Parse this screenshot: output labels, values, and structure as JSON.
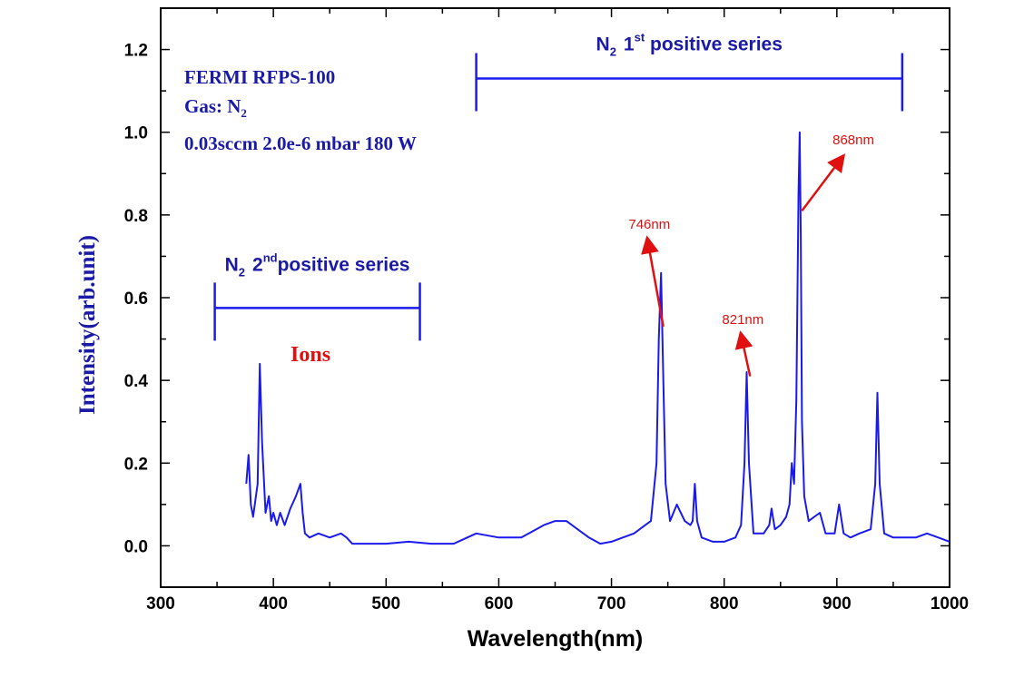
{
  "chart_data": {
    "type": "line",
    "xlabel": "Wavelength(nm)",
    "ylabel": "Intensity(arb.unit)",
    "xlim": [
      300,
      1000
    ],
    "ylim": [
      -0.1,
      1.3
    ],
    "x_ticks": [
      300,
      400,
      500,
      600,
      700,
      800,
      900,
      1000
    ],
    "x_tick_labels": [
      "300",
      "400",
      "500",
      "600",
      "700",
      "800",
      "900",
      "1000"
    ],
    "y_ticks": [
      0.0,
      0.2,
      0.4,
      0.6,
      0.8,
      1.0,
      1.2
    ],
    "y_tick_labels": [
      "0.0",
      "0.2",
      "0.4",
      "0.6",
      "0.8",
      "1.0",
      "1.2"
    ],
    "grid": false,
    "series_color": "#1a1aee",
    "annotation_color": "#e01010",
    "x": [
      376,
      378,
      380,
      382,
      386,
      388,
      390,
      393,
      396,
      398,
      400,
      403,
      406,
      410,
      415,
      420,
      424,
      426,
      428,
      432,
      440,
      450,
      460,
      465,
      470,
      480,
      500,
      520,
      540,
      560,
      580,
      600,
      620,
      640,
      650,
      660,
      670,
      680,
      690,
      700,
      710,
      720,
      730,
      735,
      740,
      742,
      744,
      746,
      748,
      752,
      758,
      765,
      770,
      772,
      774,
      776,
      780,
      790,
      800,
      810,
      815,
      818,
      820,
      822,
      826,
      835,
      840,
      842,
      845,
      850,
      855,
      858,
      860,
      862,
      864,
      866,
      867,
      868,
      869,
      871,
      875,
      880,
      885,
      890,
      898,
      902,
      906,
      912,
      920,
      930,
      934,
      936,
      938,
      942,
      950,
      960,
      970,
      980,
      990,
      1000
    ],
    "y": [
      0.15,
      0.22,
      0.1,
      0.07,
      0.15,
      0.44,
      0.25,
      0.08,
      0.12,
      0.06,
      0.08,
      0.05,
      0.08,
      0.05,
      0.09,
      0.12,
      0.15,
      0.08,
      0.03,
      0.02,
      0.03,
      0.02,
      0.03,
      0.02,
      0.005,
      0.005,
      0.005,
      0.01,
      0.005,
      0.005,
      0.03,
      0.02,
      0.02,
      0.05,
      0.06,
      0.06,
      0.04,
      0.02,
      0.005,
      0.01,
      0.02,
      0.03,
      0.05,
      0.06,
      0.2,
      0.5,
      0.66,
      0.4,
      0.15,
      0.06,
      0.1,
      0.06,
      0.05,
      0.06,
      0.15,
      0.06,
      0.02,
      0.01,
      0.01,
      0.02,
      0.05,
      0.2,
      0.42,
      0.2,
      0.03,
      0.03,
      0.05,
      0.09,
      0.04,
      0.05,
      0.07,
      0.1,
      0.2,
      0.15,
      0.35,
      0.85,
      1.0,
      0.75,
      0.3,
      0.12,
      0.06,
      0.07,
      0.08,
      0.03,
      0.03,
      0.1,
      0.03,
      0.02,
      0.03,
      0.04,
      0.15,
      0.37,
      0.15,
      0.03,
      0.02,
      0.02,
      0.02,
      0.03,
      0.02,
      0.01
    ],
    "info_lines": [
      "FERMI RFPS-100",
      "Gas: N",
      "0.03sccm 2.0e-6 mbar 180 W"
    ],
    "info_gas_subscript": "2",
    "series_1st": {
      "prefix": "N",
      "subscript": "2",
      "number": "1",
      "superscript": "st",
      "text": " positive series",
      "x_range": [
        580,
        958
      ],
      "y": 1.13
    },
    "series_2nd": {
      "prefix": "N",
      "subscript": "2",
      "number": "2",
      "superscript": "nd",
      "text": "positive series",
      "x_range": [
        348,
        530
      ],
      "y": 0.575
    },
    "ions_label": "Ions",
    "peak_annotations": [
      {
        "label": "746nm",
        "from": [
          746,
          0.53
        ],
        "to": [
          732,
          0.74
        ]
      },
      {
        "label": "821nm",
        "from": [
          823,
          0.41
        ],
        "to": [
          815,
          0.51
        ]
      },
      {
        "label": "868nm",
        "from": [
          869,
          0.81
        ],
        "to": [
          905,
          0.94
        ]
      }
    ]
  }
}
